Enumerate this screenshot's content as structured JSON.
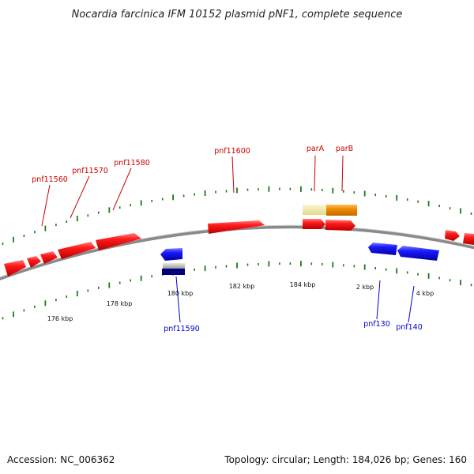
{
  "title": "Nocardia farcinica IFM 10152 plasmid pNF1, complete sequence",
  "footer": {
    "accession": "Accession: NC_006362",
    "summary": "Topology: circular; Length: 184,026 bp; Genes: 160"
  },
  "colors": {
    "forward": "#e00000",
    "reverse": "#0000d8",
    "backbone": "#808080",
    "ticks": "#1a7a1a",
    "label_forward": "#cc0000",
    "label_reverse": "#0000cc",
    "parB_highlight": "#f08a00",
    "parA_highlight": "#ede7a8"
  },
  "tick_labels": {
    "t176": "176 kbp",
    "t178": "178 kbp",
    "t180": "180 kbp",
    "t182": "182 kbp",
    "t184": "184 kbp",
    "t2": "2 kbp",
    "t4": "4 kbp"
  },
  "genes": {
    "pnf11560": "pnf11560",
    "pnf11570": "pnf11570",
    "pnf11580": "pnf11580",
    "pnf11600": "pnf11600",
    "parA": "parA",
    "parB": "parB",
    "pnf11590": "pnf11590",
    "pnf130": "pnf130",
    "pnf140": "pnf140"
  }
}
